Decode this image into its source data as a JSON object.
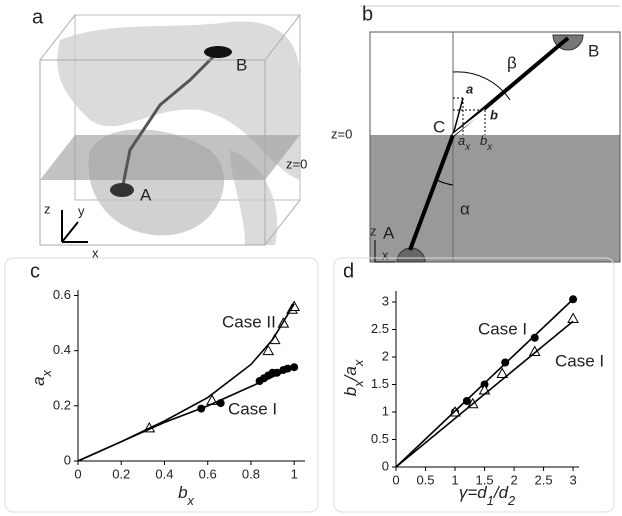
{
  "panel_a": {
    "label": "a",
    "top_point": "B",
    "bottom_point": "A",
    "plane": "z=0",
    "axes": [
      "z",
      "y",
      "x"
    ]
  },
  "panel_b": {
    "label": "b",
    "top_point": "B",
    "bottom_point": "A",
    "center": "C",
    "plane": "z=0",
    "beta": "β",
    "alpha": "α",
    "vector_a": "a",
    "vector_b": "b",
    "proj_a": [
      "a",
      "x"
    ],
    "proj_b": [
      "b",
      "x"
    ],
    "axes": [
      "z",
      "x"
    ]
  },
  "chart_data": [
    {
      "type": "scatter",
      "panel": "c",
      "xlabel": [
        "b",
        "x"
      ],
      "ylabel": [
        "a",
        "x"
      ],
      "xlim": [
        0,
        1.05
      ],
      "ylim": [
        0,
        0.62
      ],
      "xticks": [
        0,
        0.2,
        0.4,
        0.6,
        0.8,
        1
      ],
      "yticks": [
        0,
        0.2,
        0.4,
        0.6
      ],
      "annotations": [
        "Case II",
        "Case I"
      ],
      "series": [
        {
          "mode": "markers",
          "marker": "triangle",
          "color": "#000000",
          "x": [
            0.33,
            0.62,
            0.88,
            0.91,
            0.95,
            0.99,
            1.0
          ],
          "values": [
            0.12,
            0.22,
            0.4,
            0.44,
            0.5,
            0.55,
            0.56
          ]
        },
        {
          "mode": "markers",
          "marker": "circle",
          "color": "#000000",
          "x": [
            0.57,
            0.66,
            0.84,
            0.86,
            0.88,
            0.9,
            0.92,
            0.95,
            0.97,
            1.0
          ],
          "values": [
            0.19,
            0.21,
            0.29,
            0.3,
            0.31,
            0.32,
            0.32,
            0.33,
            0.335,
            0.34
          ]
        },
        {
          "mode": "line",
          "color": "#000000",
          "x": [
            0,
            0.2,
            0.4,
            0.6,
            0.8,
            0.9,
            1.0
          ],
          "values": [
            0,
            0.07,
            0.145,
            0.23,
            0.35,
            0.44,
            0.57
          ]
        },
        {
          "mode": "line",
          "color": "#000000",
          "x": [
            0,
            0.2,
            0.4,
            0.6,
            0.8,
            1.0
          ],
          "values": [
            0,
            0.07,
            0.14,
            0.2,
            0.27,
            0.34
          ]
        }
      ]
    },
    {
      "type": "scatter",
      "panel": "d",
      "xlabel": [
        "γ=d",
        "1",
        "/d",
        "2"
      ],
      "ylabel": [
        "b",
        "x",
        "/a",
        "x"
      ],
      "xlim": [
        0,
        3.1
      ],
      "ylim": [
        0,
        3.2
      ],
      "xticks": [
        0,
        0.5,
        1,
        1.5,
        2,
        2.5,
        3
      ],
      "yticks": [
        0,
        0.5,
        1,
        1.5,
        2,
        2.5,
        3
      ],
      "annotations": [
        "Case I",
        "Case I"
      ],
      "series": [
        {
          "mode": "markers",
          "marker": "circle",
          "color": "#000000",
          "x": [
            1,
            1.2,
            1.5,
            1.85,
            2.35,
            3
          ],
          "values": [
            1,
            1.2,
            1.5,
            1.9,
            2.35,
            3.05
          ]
        },
        {
          "mode": "markers",
          "marker": "triangle",
          "color": "#000000",
          "x": [
            1,
            1.3,
            1.5,
            1.8,
            2.35,
            3
          ],
          "values": [
            1,
            1.15,
            1.4,
            1.7,
            2.1,
            2.7
          ]
        },
        {
          "mode": "line",
          "color": "#000000",
          "x": [
            0,
            3
          ],
          "values": [
            0,
            3.05
          ]
        },
        {
          "mode": "line",
          "color": "#000000",
          "x": [
            0,
            3
          ],
          "values": [
            0,
            2.65
          ]
        }
      ]
    }
  ]
}
